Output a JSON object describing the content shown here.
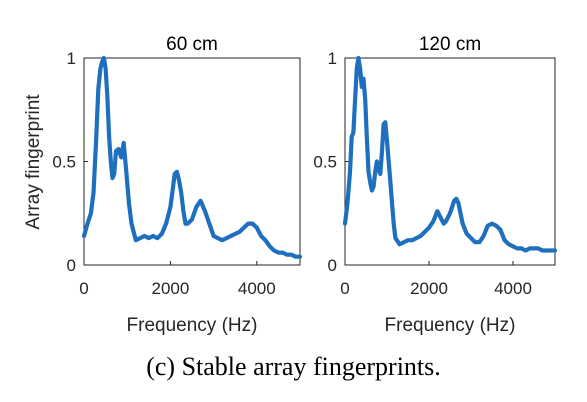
{
  "caption": "(c) Stable array fingerprints.",
  "colors": {
    "line": "#1f6fbf",
    "axis": "#262626"
  },
  "chart_data": [
    {
      "type": "line",
      "title": "60 cm",
      "xlabel": "Frequency (Hz)",
      "ylabel": "Array fingerprint",
      "xlim": [
        0,
        5000
      ],
      "ylim": [
        0,
        1
      ],
      "xticks": [
        0,
        2000,
        4000
      ],
      "xtick_labels": [
        "0",
        "2000",
        "4000"
      ],
      "yticks": [
        0,
        0.5,
        1
      ],
      "ytick_labels": [
        "0",
        "0.5",
        "1"
      ],
      "grid": false,
      "series": [
        {
          "x": [
            0,
            80,
            160,
            220,
            280,
            330,
            380,
            420,
            460,
            500,
            540,
            580,
            620,
            660,
            700,
            740,
            800,
            860,
            920,
            980,
            1040,
            1100,
            1200,
            1300,
            1400,
            1500,
            1600,
            1700,
            1800,
            1900,
            2000,
            2050,
            2100,
            2150,
            2200,
            2250,
            2300,
            2350,
            2400,
            2500,
            2600,
            2700,
            2800,
            2900,
            3000,
            3100,
            3200,
            3300,
            3400,
            3500,
            3600,
            3700,
            3800,
            3900,
            4000,
            4100,
            4200,
            4300,
            4400,
            4500,
            4600,
            4700,
            4800,
            4900,
            5000
          ],
          "y": [
            0.14,
            0.2,
            0.25,
            0.35,
            0.6,
            0.85,
            0.95,
            0.98,
            1.0,
            0.95,
            0.82,
            0.62,
            0.5,
            0.42,
            0.44,
            0.55,
            0.56,
            0.52,
            0.59,
            0.45,
            0.3,
            0.2,
            0.12,
            0.13,
            0.14,
            0.13,
            0.14,
            0.13,
            0.15,
            0.2,
            0.28,
            0.36,
            0.44,
            0.45,
            0.41,
            0.35,
            0.26,
            0.2,
            0.2,
            0.22,
            0.28,
            0.31,
            0.26,
            0.2,
            0.14,
            0.13,
            0.12,
            0.13,
            0.14,
            0.15,
            0.16,
            0.18,
            0.2,
            0.2,
            0.18,
            0.14,
            0.12,
            0.09,
            0.07,
            0.06,
            0.06,
            0.05,
            0.05,
            0.04,
            0.04
          ]
        }
      ]
    },
    {
      "type": "line",
      "title": "120 cm",
      "xlabel": "Frequency (Hz)",
      "ylabel": "",
      "xlim": [
        0,
        5000
      ],
      "ylim": [
        0,
        1
      ],
      "xticks": [
        0,
        2000,
        4000
      ],
      "xtick_labels": [
        "0",
        "2000",
        "4000"
      ],
      "yticks": [
        0,
        0.5,
        1
      ],
      "ytick_labels": [
        "0",
        "0.5",
        "1"
      ],
      "grid": false,
      "series": [
        {
          "x": [
            0,
            60,
            120,
            160,
            200,
            240,
            280,
            320,
            360,
            400,
            440,
            480,
            520,
            560,
            600,
            640,
            680,
            720,
            760,
            800,
            840,
            880,
            920,
            960,
            1000,
            1040,
            1080,
            1120,
            1160,
            1200,
            1300,
            1400,
            1500,
            1600,
            1700,
            1800,
            1900,
            2000,
            2100,
            2200,
            2250,
            2300,
            2350,
            2400,
            2450,
            2500,
            2550,
            2600,
            2650,
            2700,
            2750,
            2800,
            2900,
            3000,
            3100,
            3200,
            3300,
            3400,
            3500,
            3600,
            3700,
            3800,
            3900,
            4000,
            4100,
            4200,
            4300,
            4400,
            4500,
            4600,
            4700,
            4800,
            4900,
            5000
          ],
          "y": [
            0.2,
            0.3,
            0.45,
            0.62,
            0.64,
            0.8,
            0.95,
            1.0,
            0.95,
            0.86,
            0.9,
            0.8,
            0.62,
            0.45,
            0.4,
            0.36,
            0.38,
            0.45,
            0.5,
            0.46,
            0.44,
            0.55,
            0.68,
            0.69,
            0.6,
            0.5,
            0.4,
            0.3,
            0.2,
            0.13,
            0.1,
            0.11,
            0.12,
            0.12,
            0.13,
            0.14,
            0.16,
            0.18,
            0.21,
            0.26,
            0.24,
            0.22,
            0.2,
            0.21,
            0.23,
            0.25,
            0.28,
            0.31,
            0.32,
            0.3,
            0.25,
            0.2,
            0.15,
            0.13,
            0.11,
            0.11,
            0.14,
            0.19,
            0.2,
            0.19,
            0.17,
            0.12,
            0.1,
            0.09,
            0.08,
            0.08,
            0.07,
            0.08,
            0.08,
            0.08,
            0.07,
            0.07,
            0.07,
            0.07
          ]
        }
      ]
    }
  ]
}
